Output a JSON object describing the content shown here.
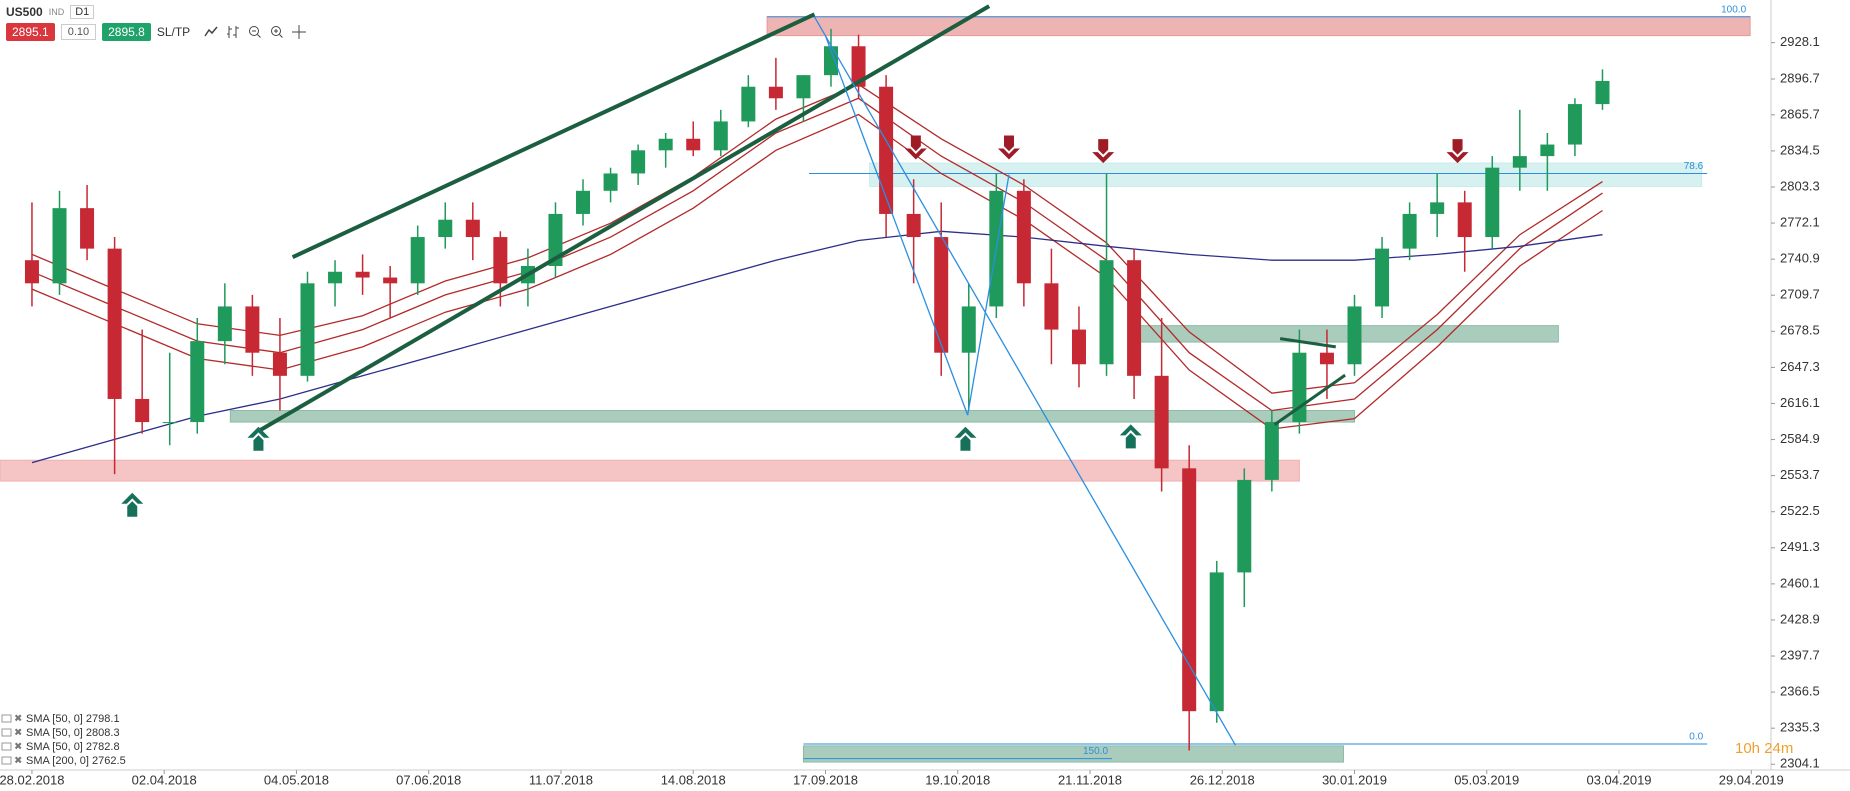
{
  "toolbar": {
    "symbol": "US500",
    "market": "IND",
    "interval": "D1",
    "sell": "2895.1",
    "step": "0.10",
    "buy": "2895.8",
    "sltp": "SL/TP"
  },
  "countdown": "10h 24m",
  "chart_data": {
    "type": "candlestick",
    "xlim": [
      -5.8,
      315.4
    ],
    "ylim": [
      2300,
      2965
    ],
    "xticks": [
      {
        "value": 0,
        "label": "28.02.2018"
      },
      {
        "value": 24,
        "label": "02.04.2018"
      },
      {
        "value": 48,
        "label": "04.05.2018"
      },
      {
        "value": 72,
        "label": "07.06.2018"
      },
      {
        "value": 96,
        "label": "11.07.2018"
      },
      {
        "value": 120,
        "label": "14.08.2018"
      },
      {
        "value": 144,
        "label": "17.09.2018"
      },
      {
        "value": 168,
        "label": "19.10.2018"
      },
      {
        "value": 192,
        "label": "21.11.2018"
      },
      {
        "value": 216,
        "label": "26.12.2018"
      },
      {
        "value": 240,
        "label": "30.01.2019"
      },
      {
        "value": 264,
        "label": "05.03.2019"
      },
      {
        "value": 288,
        "label": "03.04.2019"
      },
      {
        "value": 312,
        "label": "29.04.2019"
      }
    ],
    "yticks": [
      2928.1,
      2896.7,
      2865.7,
      2834.5,
      2803.3,
      2772.1,
      2740.9,
      2709.7,
      2678.5,
      2647.3,
      2616.1,
      2584.9,
      2553.7,
      2522.5,
      2491.3,
      2460.1,
      2428.9,
      2397.7,
      2366.5,
      2335.3,
      2304.1
    ],
    "up_color": "#1f9a5a",
    "down_color": "#c62834",
    "candles": {
      "x": [
        0,
        5,
        10,
        15,
        20,
        25,
        30,
        35,
        40,
        45,
        50,
        55,
        60,
        65,
        70,
        75,
        80,
        85,
        90,
        95,
        100,
        105,
        110,
        115,
        120,
        125,
        130,
        135,
        140,
        145,
        150,
        155,
        160,
        165,
        170,
        175,
        180,
        185,
        190,
        195,
        200,
        205,
        210,
        215,
        220,
        225,
        230,
        235,
        240,
        245,
        250,
        255,
        260,
        265,
        270,
        275,
        280,
        285
      ],
      "open": [
        2740,
        2720,
        2785,
        2750,
        2620,
        2600,
        2600,
        2670,
        2700,
        2660,
        2640,
        2720,
        2730,
        2725,
        2720,
        2760,
        2775,
        2760,
        2720,
        2735,
        2780,
        2800,
        2815,
        2835,
        2845,
        2835,
        2860,
        2890,
        2880,
        2900,
        2925,
        2890,
        2780,
        2760,
        2660,
        2700,
        2800,
        2720,
        2680,
        2650,
        2740,
        2640,
        2560,
        2350,
        2470,
        2550,
        2600,
        2660,
        2650,
        2700,
        2750,
        2780,
        2790,
        2760,
        2820,
        2830,
        2840,
        2875
      ],
      "high": [
        2790,
        2800,
        2805,
        2760,
        2680,
        2660,
        2690,
        2720,
        2710,
        2690,
        2730,
        2740,
        2745,
        2735,
        2770,
        2790,
        2790,
        2765,
        2750,
        2790,
        2810,
        2820,
        2840,
        2850,
        2860,
        2870,
        2900,
        2915,
        2900,
        2940,
        2935,
        2900,
        2810,
        2790,
        2720,
        2815,
        2810,
        2750,
        2700,
        2815,
        2750,
        2690,
        2580,
        2480,
        2560,
        2610,
        2680,
        2680,
        2710,
        2760,
        2790,
        2815,
        2800,
        2830,
        2870,
        2850,
        2880,
        2905
      ],
      "low": [
        2700,
        2710,
        2740,
        2555,
        2590,
        2580,
        2590,
        2650,
        2640,
        2610,
        2635,
        2700,
        2710,
        2690,
        2710,
        2750,
        2740,
        2700,
        2700,
        2725,
        2770,
        2790,
        2805,
        2820,
        2830,
        2830,
        2855,
        2870,
        2860,
        2890,
        2880,
        2760,
        2720,
        2640,
        2610,
        2690,
        2700,
        2650,
        2630,
        2640,
        2620,
        2540,
        2316,
        2340,
        2440,
        2540,
        2590,
        2620,
        2640,
        2690,
        2740,
        2760,
        2730,
        2750,
        2800,
        2800,
        2830,
        2870
      ],
      "close": [
        2720,
        2785,
        2750,
        2620,
        2600,
        2600,
        2670,
        2700,
        2660,
        2640,
        2720,
        2730,
        2725,
        2720,
        2760,
        2775,
        2760,
        2720,
        2735,
        2780,
        2800,
        2815,
        2835,
        2845,
        2835,
        2860,
        2890,
        2880,
        2900,
        2925,
        2890,
        2780,
        2760,
        2660,
        2700,
        2800,
        2720,
        2680,
        2650,
        2740,
        2640,
        2560,
        2350,
        2470,
        2550,
        2600,
        2660,
        2650,
        2700,
        2750,
        2780,
        2790,
        2760,
        2820,
        2830,
        2840,
        2875,
        2895
      ]
    },
    "lines": [
      {
        "name": "SMA [50, 0] 2798.1",
        "color": "#b22a2a",
        "width": 1.3,
        "x": [
          0,
          15,
          30,
          45,
          60,
          75,
          90,
          105,
          120,
          135,
          150,
          165,
          180,
          195,
          210,
          225,
          240,
          255,
          270,
          285
        ],
        "values": [
          2730,
          2700,
          2670,
          2660,
          2680,
          2710,
          2730,
          2760,
          2800,
          2850,
          2880,
          2830,
          2790,
          2740,
          2660,
          2610,
          2620,
          2680,
          2750,
          2798
        ]
      },
      {
        "name": "SMA [50, 0] 2808.3",
        "color": "#b22a2a",
        "width": 1.3,
        "x": [
          0,
          15,
          30,
          45,
          60,
          75,
          90,
          105,
          120,
          135,
          150,
          165,
          180,
          195,
          210,
          225,
          240,
          255,
          270,
          285
        ],
        "values": [
          2745,
          2715,
          2685,
          2675,
          2692,
          2722,
          2742,
          2772,
          2812,
          2862,
          2892,
          2845,
          2805,
          2755,
          2678,
          2625,
          2634,
          2693,
          2762,
          2808
        ]
      },
      {
        "name": "SMA [50, 0] 2782.8",
        "color": "#b22a2a",
        "width": 1.3,
        "x": [
          0,
          15,
          30,
          45,
          60,
          75,
          90,
          105,
          120,
          135,
          150,
          165,
          180,
          195,
          210,
          225,
          240,
          255,
          270,
          285
        ],
        "values": [
          2715,
          2685,
          2655,
          2645,
          2665,
          2695,
          2715,
          2745,
          2785,
          2835,
          2866,
          2815,
          2775,
          2725,
          2645,
          2594,
          2603,
          2665,
          2735,
          2783
        ]
      },
      {
        "name": "SMA [200, 0] 2762.5",
        "color": "#2b2f8a",
        "width": 1.3,
        "x": [
          0,
          15,
          30,
          45,
          60,
          75,
          90,
          105,
          120,
          135,
          150,
          165,
          180,
          195,
          210,
          225,
          240,
          255,
          270,
          285
        ],
        "values": [
          2565,
          2585,
          2605,
          2620,
          2640,
          2660,
          2680,
          2700,
          2720,
          2740,
          2757,
          2765,
          2760,
          2752,
          2745,
          2740,
          2740,
          2745,
          2752,
          2762
        ]
      }
    ],
    "zones": [
      {
        "x": [
          133.4,
          311.8
        ],
        "y": [
          2934.2,
          2950.5
        ],
        "color": "#e89a9a"
      },
      {
        "x": [
          152,
          303
        ],
        "y": [
          2803.7,
          2824
        ],
        "color": "#c9ecec"
      },
      {
        "x": [
          200,
          277
        ],
        "y": [
          2669.2,
          2683.4
        ],
        "color": "#8dbba6"
      },
      {
        "x": [
          36,
          240
        ],
        "y": [
          2600,
          2610
        ],
        "color": "#8dbba6"
      },
      {
        "x": [
          -5.8,
          230
        ],
        "y": [
          2549,
          2567
        ],
        "color": "#f2b0b0"
      },
      {
        "x": [
          140,
          238
        ],
        "y": [
          2306,
          2320
        ],
        "color": "#8dbba6"
      }
    ],
    "fib_levels": [
      {
        "label": "100.0",
        "price": 2950.5,
        "x": [
          133.4,
          311.8
        ]
      },
      {
        "label": "78.6",
        "price": 2815,
        "x": [
          141,
          304
        ]
      },
      {
        "label": "0.0",
        "price": 2321.6,
        "x": [
          140,
          304
        ]
      },
      {
        "label": "150.0",
        "price": 2309,
        "x": [
          140,
          196
        ]
      }
    ],
    "trendlines": [
      {
        "from": [
          47.3,
          2742.6
        ],
        "to": [
          142,
          2952.6
        ],
        "color": "#1b5e40",
        "width": 4
      },
      {
        "from": [
          41.3,
          2592.7
        ],
        "to": [
          173.7,
          2959.7
        ],
        "color": "#1b5e40",
        "width": 4
      },
      {
        "from": [
          226.5,
          2672.2
        ],
        "to": [
          236.6,
          2665
        ],
        "color": "#1b5e40",
        "width": 3
      },
      {
        "from": [
          225.5,
          2597.8
        ],
        "to": [
          238.3,
          2640.6
        ],
        "color": "#1b5e40",
        "width": 3
      },
      {
        "from": [
          142,
          2950.5
        ],
        "to": [
          218.4,
          2320.6
        ],
        "color": "#2a8fe0",
        "width": 1.3
      },
      {
        "from": [
          144,
          2934
        ],
        "to": [
          169.8,
          2606
        ],
        "color": "#2a8fe0",
        "width": 1.3
      },
      {
        "from": [
          169.8,
          2606
        ],
        "to": [
          177.3,
          2814
        ],
        "color": "#2a8fe0",
        "width": 1.3
      }
    ],
    "signals": [
      {
        "x": 18.2,
        "price": 2528.5,
        "direction": "up"
      },
      {
        "x": 41.1,
        "price": 2585.6,
        "direction": "up"
      },
      {
        "x": 169.4,
        "price": 2585.6,
        "direction": "up"
      },
      {
        "x": 199.4,
        "price": 2587.6,
        "direction": "up"
      },
      {
        "x": 160.4,
        "price": 2837.4,
        "direction": "down"
      },
      {
        "x": 177.3,
        "price": 2837.4,
        "direction": "down"
      },
      {
        "x": 194.4,
        "price": 2834.3,
        "direction": "down"
      },
      {
        "x": 258.7,
        "price": 2834.3,
        "direction": "down"
      }
    ]
  }
}
